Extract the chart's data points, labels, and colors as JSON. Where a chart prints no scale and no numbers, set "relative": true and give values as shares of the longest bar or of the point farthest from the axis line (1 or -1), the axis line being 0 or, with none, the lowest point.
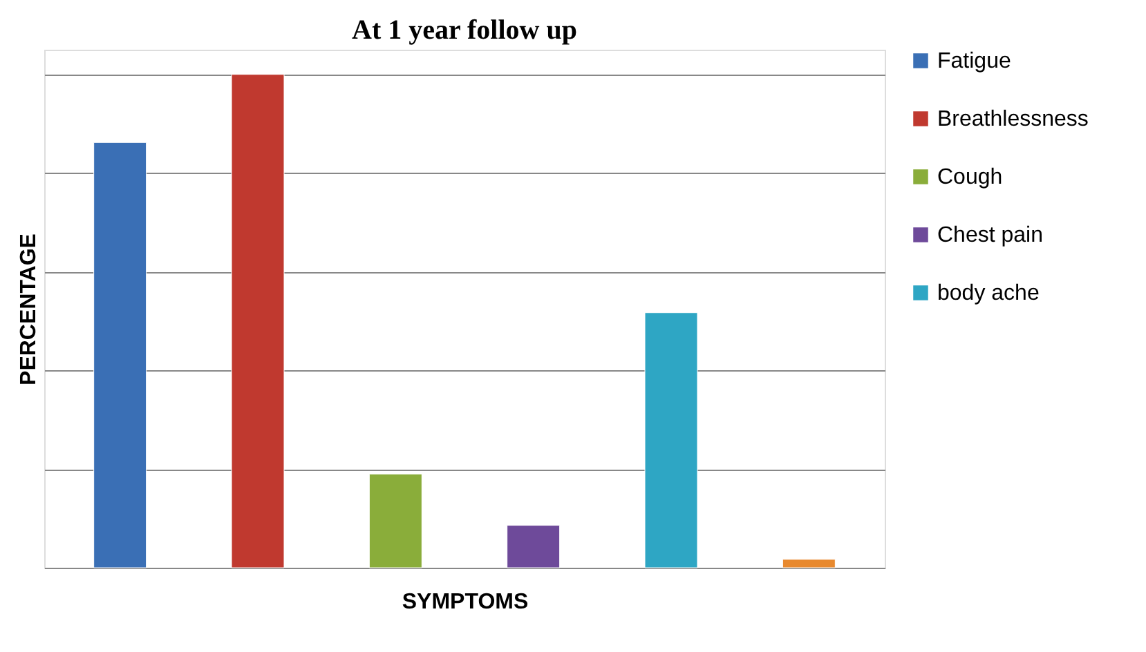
{
  "chart_data": {
    "type": "bar",
    "title": "At 1 year follow up",
    "xlabel": "SYMPTOMS",
    "ylabel": "PERCENTAGE",
    "relative": true,
    "stacked": true,
    "categories": [
      null,
      null,
      null,
      null,
      null,
      null
    ],
    "series": [
      {
        "name": "Fatigue",
        "color": "#3a6fb5",
        "values": [
          0.862,
          null,
          null,
          null,
          null,
          null
        ]
      },
      {
        "name": "Breathlessness",
        "color": "#c0392f",
        "values": [
          null,
          1,
          null,
          null,
          null,
          null
        ]
      },
      {
        "name": "Cough",
        "color": "#8aad3a",
        "values": [
          null,
          null,
          0.19,
          null,
          null,
          null
        ]
      },
      {
        "name": "Chest pain",
        "color": "#6e4a9a",
        "values": [
          null,
          null,
          null,
          0.086,
          null,
          null
        ]
      },
      {
        "name": "body ache",
        "color": "#2ea6c4",
        "values": [
          null,
          null,
          null,
          null,
          0.517,
          null
        ]
      },
      {
        "color": "#e8892e",
        "values": [
          null,
          null,
          null,
          null,
          null,
          0.017
        ]
      }
    ],
    "grid": "y",
    "legend": "right"
  }
}
